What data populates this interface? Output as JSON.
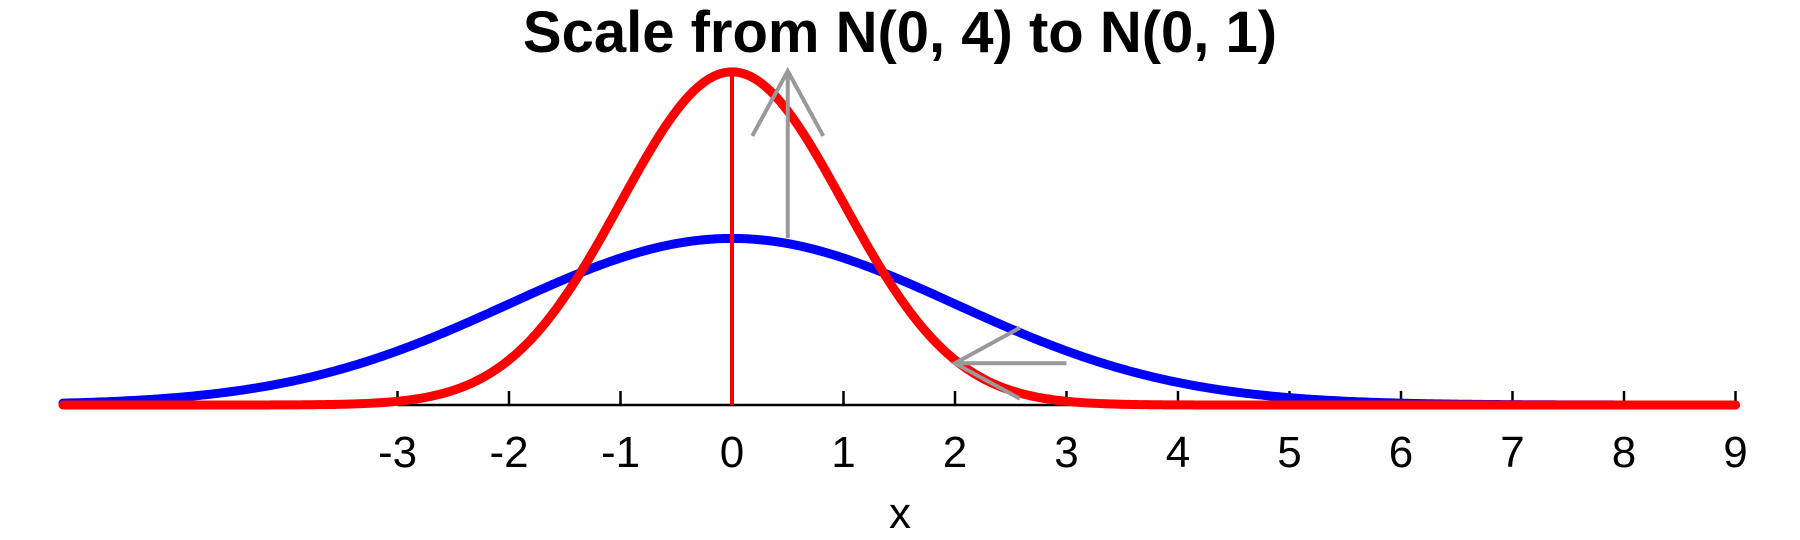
{
  "chart_data": {
    "type": "line",
    "title": "Scale from N(0, 4) to N(0, 1)",
    "xlabel": "x",
    "ylabel": "",
    "xlim": [
      -6,
      9
    ],
    "ylim": [
      0,
      0.4
    ],
    "x_ticks": [
      -3,
      -2,
      -1,
      0,
      1,
      2,
      3,
      4,
      5,
      6,
      7,
      8,
      9
    ],
    "x_tick_labels": [
      "-3",
      "-2",
      "-1",
      "0",
      "1",
      "2",
      "3",
      "4",
      "5",
      "6",
      "7",
      "8",
      "9"
    ],
    "series": [
      {
        "color": "#ff0000",
        "mean": 0,
        "variance": 1
      },
      {
        "color": "#0000ff",
        "mean": 0,
        "variance": 4
      }
    ],
    "annotations": [
      {
        "kind": "vertical-line",
        "x": 0,
        "y_from": 0,
        "y_to": 0.3989,
        "color": "#ff0000"
      },
      {
        "kind": "arrow",
        "color": "#999999",
        "from": [
          0.5,
          0.2
        ],
        "to": [
          0.5,
          0.4
        ]
      },
      {
        "kind": "arrow",
        "color": "#999999",
        "from": [
          3.0,
          0.05
        ],
        "to": [
          2.0,
          0.05
        ]
      }
    ],
    "grid": false,
    "legend": "none"
  }
}
